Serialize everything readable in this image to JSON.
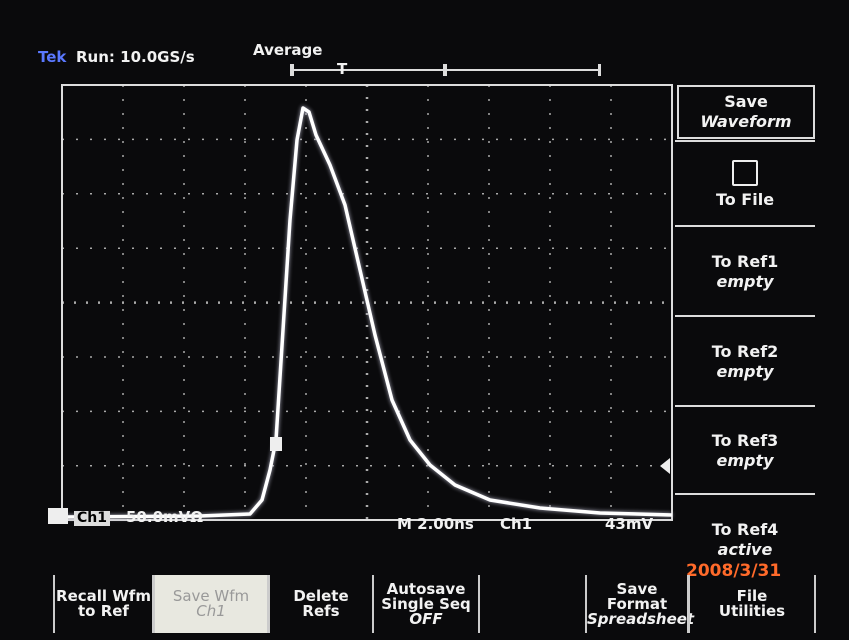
{
  "header": {
    "brand": "Tek",
    "status": "Run: 10.0GS/s",
    "acquisition": "Average",
    "trigger_marker": "T"
  },
  "side_menu": [
    {
      "lines": [
        "Save",
        "Waveform"
      ]
    },
    {
      "lines": [
        "To File"
      ]
    },
    {
      "lines": [
        "To Ref1",
        "empty"
      ]
    },
    {
      "lines": [
        "To Ref2",
        "empty"
      ]
    },
    {
      "lines": [
        "To Ref3",
        "empty"
      ]
    },
    {
      "lines": [
        "To Ref4",
        "active"
      ]
    }
  ],
  "readout": {
    "channel": "Ch1",
    "scale": "50.0mVΩ",
    "timebase": "M 2.00ns",
    "trigger_source": "Ch1",
    "trigger_level": "43mV"
  },
  "bottom_menu": [
    {
      "lines": [
        "Recall Wfm",
        "to Ref"
      ]
    },
    {
      "lines": [
        "Save Wfm",
        "Ch1"
      ]
    },
    {
      "lines": [
        "Delete",
        "Refs"
      ]
    },
    {
      "lines": [
        "Autosave",
        "Single Seq",
        "OFF"
      ]
    },
    {
      "lines": [
        "Save",
        "Format",
        "Spreadsheet"
      ]
    },
    {
      "lines": [
        "File",
        "Utilities"
      ]
    }
  ],
  "timestamp": "2008/3/31"
}
